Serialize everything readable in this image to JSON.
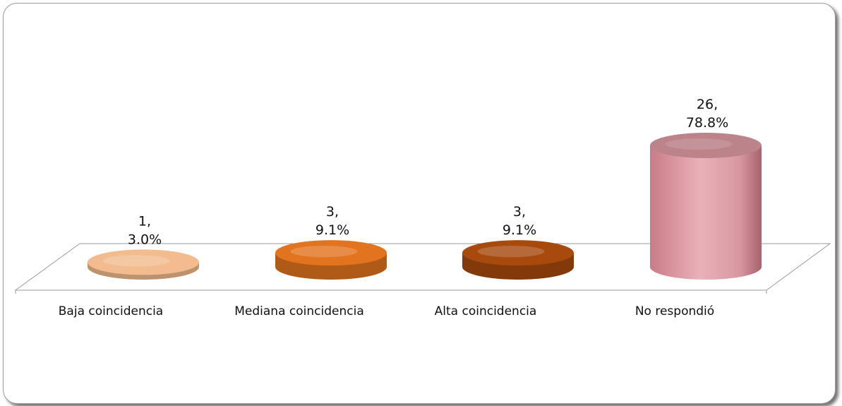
{
  "chart_data": {
    "type": "bar",
    "title": "",
    "xlabel": "",
    "ylabel": "",
    "categories": [
      "Baja coincidencia",
      "Mediana coincidencia",
      "Alta coincidencia",
      "No respondió"
    ],
    "values": [
      1,
      3,
      3,
      26
    ],
    "percentages": [
      "3.0%",
      "9.1%",
      "9.1%",
      "78.8%"
    ],
    "data_labels": [
      {
        "count": "1,",
        "percent": "3.0%"
      },
      {
        "count": "3,",
        "percent": "9.1%"
      },
      {
        "count": "3,",
        "percent": "9.1%"
      },
      {
        "count": "26,",
        "percent": "78.8%"
      }
    ],
    "colors": [
      "#f2bc8e",
      "#e2741f",
      "#a84a0e",
      "#dd9aa4"
    ],
    "style": "3d-cylinder",
    "grid": false,
    "legend": "none",
    "ylim": [
      0,
      26
    ]
  }
}
